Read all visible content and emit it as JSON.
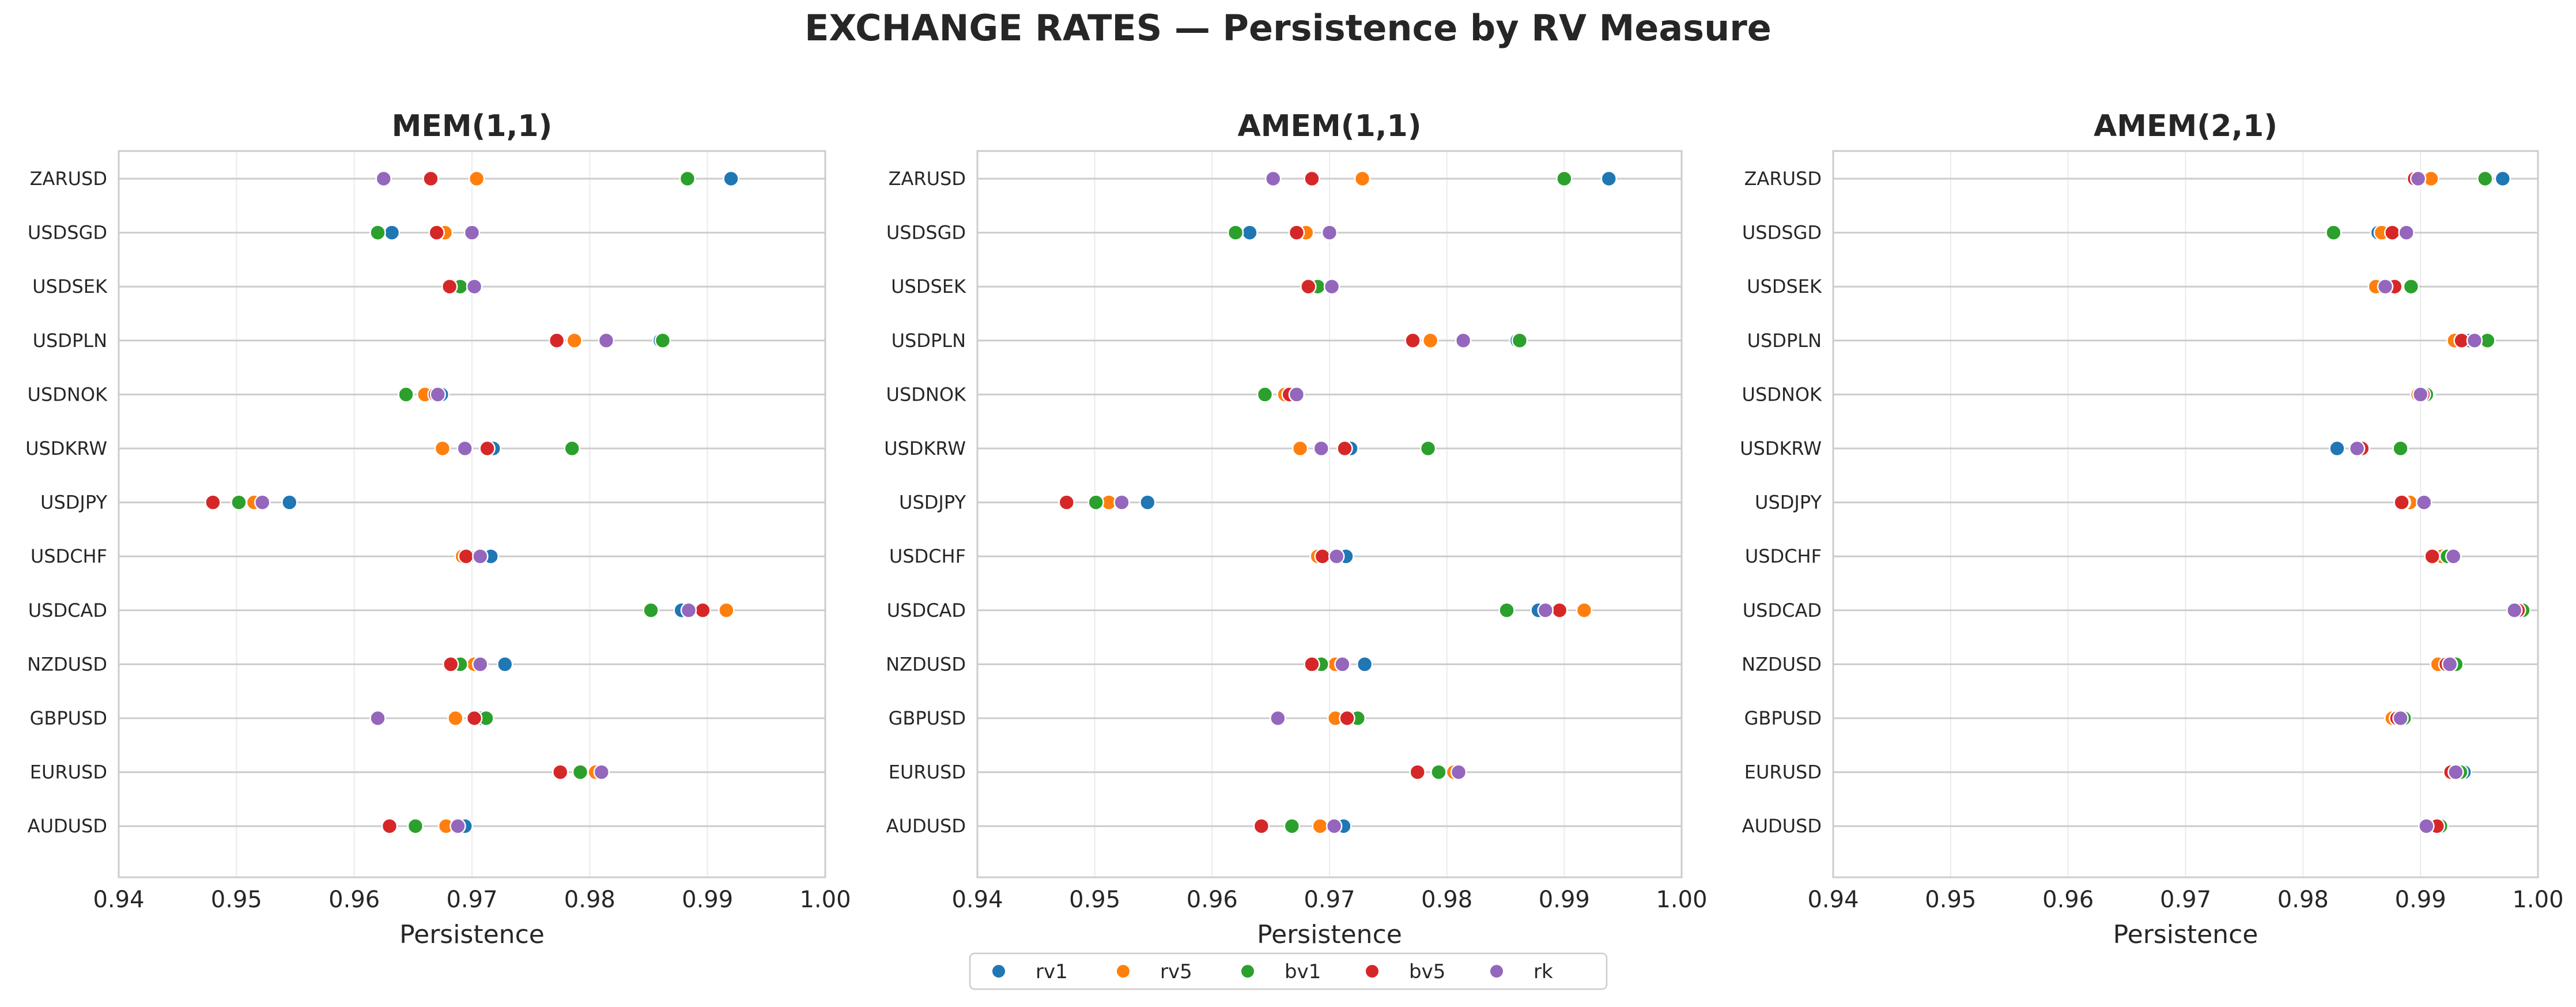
{
  "figure": {
    "title": "EXCHANGE RATES — Persistence by RV Measure"
  },
  "legend": {
    "placement": "bottom-center",
    "series": [
      {
        "name": "rv1",
        "color": "#1f77b4"
      },
      {
        "name": "rv5",
        "color": "#ff7f0e"
      },
      {
        "name": "bv1",
        "color": "#2ca02c"
      },
      {
        "name": "bv5",
        "color": "#d62728"
      },
      {
        "name": "rk",
        "color": "#9467bd"
      }
    ]
  },
  "chart_data": [
    {
      "type": "scatter",
      "title": "MEM(1,1)",
      "xlabel": "Persistence",
      "ylabel": "",
      "xlim": [
        0.94,
        1.0
      ],
      "xticks": [
        "0.94",
        "0.95",
        "0.96",
        "0.97",
        "0.98",
        "0.99",
        "1.00"
      ],
      "grid": true,
      "categories": [
        "ZARUSD",
        "USDSGD",
        "USDSEK",
        "USDPLN",
        "USDNOK",
        "USDKRW",
        "USDJPY",
        "USDCHF",
        "USDCAD",
        "NZDUSD",
        "GBPUSD",
        "EURUSD",
        "AUDUSD"
      ],
      "series": [
        {
          "name": "rv1",
          "values": [
            0.992,
            0.9632,
            0.9688,
            0.986,
            0.9674,
            0.9718,
            0.9545,
            0.9716,
            0.9878,
            0.9728,
            0.9708,
            0.9808,
            0.9694
          ]
        },
        {
          "name": "rv5",
          "values": [
            0.9704,
            0.9677,
            0.9686,
            0.9787,
            0.966,
            0.9675,
            0.9515,
            0.9692,
            0.9916,
            0.9702,
            0.9686,
            0.9805,
            0.9678
          ]
        },
        {
          "name": "bv1",
          "values": [
            0.9883,
            0.962,
            0.969,
            0.9862,
            0.9644,
            0.9785,
            0.9502,
            0.9697,
            0.9852,
            0.969,
            0.9712,
            0.9792,
            0.9652
          ]
        },
        {
          "name": "bv5",
          "values": [
            0.9665,
            0.967,
            0.9681,
            0.9772,
            0.9669,
            0.9713,
            0.948,
            0.9695,
            0.9896,
            0.9682,
            0.9702,
            0.9775,
            0.963
          ]
        },
        {
          "name": "rk",
          "values": [
            0.9625,
            0.97,
            0.9702,
            0.9814,
            0.9671,
            0.9694,
            0.9522,
            0.9707,
            0.9884,
            0.9707,
            0.962,
            0.981,
            0.9688
          ]
        }
      ]
    },
    {
      "type": "scatter",
      "title": "AMEM(1,1)",
      "xlabel": "Persistence",
      "ylabel": "",
      "xlim": [
        0.94,
        1.0
      ],
      "xticks": [
        "0.94",
        "0.95",
        "0.96",
        "0.97",
        "0.98",
        "0.99",
        "1.00"
      ],
      "grid": true,
      "categories": [
        "ZARUSD",
        "USDSGD",
        "USDSEK",
        "USDPLN",
        "USDNOK",
        "USDKRW",
        "USDJPY",
        "USDCHF",
        "USDCAD",
        "NZDUSD",
        "GBPUSD",
        "EURUSD",
        "AUDUSD"
      ],
      "series": [
        {
          "name": "rv1",
          "values": [
            0.9938,
            0.9632,
            0.9688,
            0.986,
            0.9671,
            0.9718,
            0.9545,
            0.9714,
            0.9878,
            0.973,
            0.9718,
            0.9808,
            0.9712
          ]
        },
        {
          "name": "rv5",
          "values": [
            0.9728,
            0.968,
            0.9687,
            0.9786,
            0.9662,
            0.9675,
            0.9512,
            0.969,
            0.9917,
            0.9705,
            0.9705,
            0.9806,
            0.9692
          ]
        },
        {
          "name": "bv1",
          "values": [
            0.99,
            0.962,
            0.969,
            0.9862,
            0.9645,
            0.9784,
            0.9501,
            0.9696,
            0.9851,
            0.9693,
            0.9724,
            0.9793,
            0.9668
          ]
        },
        {
          "name": "bv5",
          "values": [
            0.9685,
            0.9672,
            0.9682,
            0.9771,
            0.9666,
            0.9713,
            0.9476,
            0.9694,
            0.9896,
            0.9685,
            0.9715,
            0.9775,
            0.9642
          ]
        },
        {
          "name": "rk",
          "values": [
            0.9652,
            0.97,
            0.9702,
            0.9814,
            0.9672,
            0.9693,
            0.9523,
            0.9706,
            0.9884,
            0.9711,
            0.9656,
            0.981,
            0.9704
          ]
        }
      ]
    },
    {
      "type": "scatter",
      "title": "AMEM(2,1)",
      "xlabel": "Persistence",
      "ylabel": "",
      "xlim": [
        0.94,
        1.0
      ],
      "xticks": [
        "0.94",
        "0.95",
        "0.96",
        "0.97",
        "0.98",
        "0.99",
        "1.00"
      ],
      "grid": true,
      "categories": [
        "ZARUSD",
        "USDSGD",
        "USDSEK",
        "USDPLN",
        "USDNOK",
        "USDKRW",
        "USDJPY",
        "USDCHF",
        "USDCAD",
        "NZDUSD",
        "GBPUSD",
        "EURUSD",
        "AUDUSD"
      ],
      "series": [
        {
          "name": "rv1",
          "values": [
            0.997,
            0.9864,
            0.9872,
            0.9942,
            0.9906,
            0.9829,
            0.9888,
            0.9921,
            0.9982,
            0.9929,
            0.988,
            0.9937,
            0.9914
          ]
        },
        {
          "name": "rv5",
          "values": [
            0.9909,
            0.9867,
            0.9862,
            0.9929,
            0.9898,
            0.9849,
            0.9891,
            0.9918,
            0.9985,
            0.9915,
            0.9876,
            0.9931,
            0.9911
          ]
        },
        {
          "name": "bv1",
          "values": [
            0.9955,
            0.9826,
            0.9892,
            0.9957,
            0.9905,
            0.9883,
            0.9885,
            0.9923,
            0.9987,
            0.993,
            0.9886,
            0.9934,
            0.9917
          ]
        },
        {
          "name": "bv5",
          "values": [
            0.9895,
            0.9876,
            0.9878,
            0.9935,
            0.9902,
            0.985,
            0.9884,
            0.991,
            0.9983,
            0.9922,
            0.988,
            0.9926,
            0.9914
          ]
        },
        {
          "name": "rk",
          "values": [
            0.9898,
            0.9888,
            0.987,
            0.9946,
            0.99,
            0.9846,
            0.9903,
            0.9928,
            0.998,
            0.9925,
            0.9883,
            0.993,
            0.9905
          ]
        }
      ]
    }
  ]
}
